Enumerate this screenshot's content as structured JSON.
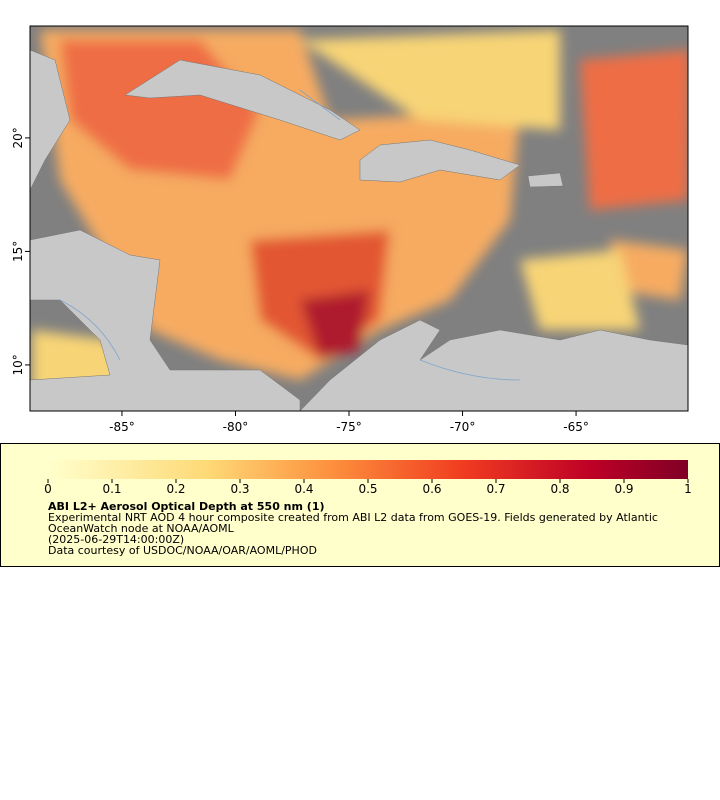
{
  "map": {
    "xaxis": {
      "lim": [
        -89.05,
        -60.07
      ],
      "ticks": [
        {
          "value": -85,
          "label": "-85°"
        },
        {
          "value": -80,
          "label": "-80°"
        },
        {
          "value": -75,
          "label": "-75°"
        },
        {
          "value": -70,
          "label": "-70°"
        },
        {
          "value": -65,
          "label": "-65°"
        }
      ]
    },
    "yaxis": {
      "lim": [
        7.97,
        24.93
      ],
      "ticks": [
        {
          "value": 10,
          "label": "10°"
        },
        {
          "value": 15,
          "label": "15°"
        },
        {
          "value": 20,
          "label": "20°"
        }
      ]
    },
    "colorbar": {
      "lim": [
        0,
        1
      ],
      "ticks": [
        0,
        0.1,
        0.2,
        0.3,
        0.4,
        0.5,
        0.6,
        0.7,
        0.8,
        0.9,
        1
      ]
    }
  },
  "legend": {
    "title": "ABI L2+ Aerosol Optical Depth at 550 nm (1)",
    "lines": [
      "Experimental NRT AOD 4 hour composite created from ABI L2 data from GOES-19. Fields generated by Atlantic",
      "OceanWatch node at NOAA/AOML",
      "(2025-06-29T14:00:00Z)",
      "Data courtesy of USDOC/NOAA/OAR/AOML/PHOD"
    ]
  }
}
